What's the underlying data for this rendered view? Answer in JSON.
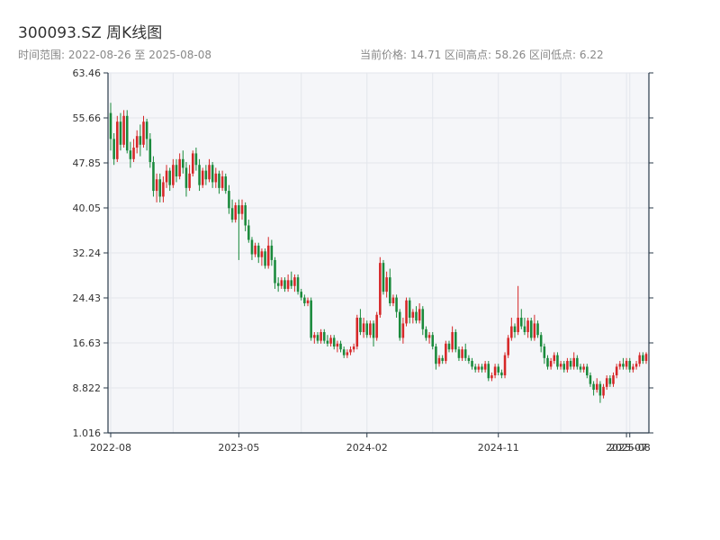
{
  "header": {
    "title": "300093.SZ 周K线图",
    "subtitle": "时间范围: 2022-08-26 至 2025-08-08",
    "stats": "当前价格: 14.71   区间高点: 58.26   区间低点: 6.22"
  },
  "colors": {
    "up": "#d62728",
    "down": "#1a8a3c",
    "plot_bg": "#f5f6f9",
    "grid": "#e3e6ec",
    "axis": "#2a3a4a"
  },
  "chart_data": {
    "type": "candlestick",
    "title": "300093.SZ 周K线图",
    "date_range": [
      "2022-08-26",
      "2025-08-08"
    ],
    "current_price": 14.71,
    "period_high": 58.26,
    "period_low": 6.22,
    "ylim": [
      1.016,
      63.46
    ],
    "yticks": [
      "1.016",
      "8.822",
      "16.63",
      "24.43",
      "32.24",
      "40.05",
      "47.85",
      "55.66",
      "63.46"
    ],
    "xticks": [
      {
        "label": "2022-08",
        "index": 0
      },
      {
        "label": "2023-05",
        "index": 39
      },
      {
        "label": "2024-02",
        "index": 78
      },
      {
        "label": "2024-11",
        "index": 118
      },
      {
        "label": "2025-07",
        "index": 157
      },
      {
        "label": "2025-08",
        "index": 158
      }
    ],
    "candles": [
      [
        56.5,
        52.0,
        58.26,
        50.0
      ],
      [
        52.0,
        48.5,
        53.0,
        47.5
      ],
      [
        48.5,
        55.0,
        56.0,
        48.0
      ],
      [
        55.0,
        51.0,
        56.5,
        50.0
      ],
      [
        51.0,
        56.0,
        57.0,
        50.5
      ],
      [
        56.0,
        50.0,
        57.0,
        49.5
      ],
      [
        50.0,
        48.5,
        51.5,
        47.0
      ],
      [
        48.5,
        50.5,
        52.0,
        48.0
      ],
      [
        50.5,
        52.5,
        53.5,
        49.5
      ],
      [
        52.5,
        51.0,
        54.5,
        49.0
      ],
      [
        51.0,
        55.0,
        56.0,
        50.5
      ],
      [
        55.0,
        52.0,
        55.5,
        50.0
      ],
      [
        52.0,
        48.0,
        53.0,
        47.0
      ],
      [
        48.0,
        43.0,
        49.0,
        42.0
      ],
      [
        43.0,
        45.0,
        46.0,
        41.0
      ],
      [
        45.0,
        42.0,
        46.0,
        41.0
      ],
      [
        42.0,
        44.5,
        45.5,
        41.0
      ],
      [
        44.5,
        46.5,
        47.5,
        43.5
      ],
      [
        46.5,
        44.0,
        47.0,
        43.0
      ],
      [
        44.0,
        47.5,
        48.5,
        43.5
      ],
      [
        47.5,
        45.5,
        48.5,
        44.5
      ],
      [
        45.5,
        48.5,
        49.5,
        45.0
      ],
      [
        48.5,
        47.0,
        50.0,
        46.0
      ],
      [
        47.0,
        43.5,
        48.0,
        42.0
      ],
      [
        43.5,
        46.0,
        47.5,
        43.0
      ],
      [
        46.0,
        49.5,
        50.0,
        45.5
      ],
      [
        49.5,
        47.5,
        50.5,
        46.5
      ],
      [
        47.5,
        44.0,
        48.5,
        43.0
      ],
      [
        44.0,
        46.5,
        47.0,
        43.5
      ],
      [
        46.5,
        45.0,
        47.5,
        44.0
      ],
      [
        45.0,
        47.5,
        48.5,
        44.5
      ],
      [
        47.5,
        44.5,
        48.0,
        43.5
      ],
      [
        44.5,
        46.0,
        47.0,
        43.5
      ],
      [
        46.0,
        43.5,
        46.5,
        42.5
      ],
      [
        43.5,
        45.5,
        46.5,
        43.0
      ],
      [
        45.5,
        43.0,
        46.0,
        42.5
      ],
      [
        43.0,
        40.0,
        44.0,
        39.0
      ],
      [
        40.0,
        38.0,
        41.5,
        37.5
      ],
      [
        38.0,
        40.5,
        41.0,
        37.5
      ],
      [
        40.5,
        39.0,
        41.5,
        31.0
      ],
      [
        39.0,
        40.5,
        41.5,
        38.0
      ],
      [
        40.5,
        37.0,
        41.0,
        36.0
      ],
      [
        37.0,
        34.5,
        38.0,
        34.0
      ],
      [
        34.5,
        32.0,
        35.0,
        31.0
      ],
      [
        32.0,
        33.5,
        34.0,
        31.5
      ],
      [
        33.5,
        31.5,
        34.0,
        30.5
      ],
      [
        31.5,
        32.5,
        33.0,
        30.0
      ],
      [
        32.5,
        30.0,
        33.0,
        29.5
      ],
      [
        30.0,
        33.5,
        35.0,
        29.5
      ],
      [
        33.5,
        31.0,
        34.5,
        30.0
      ],
      [
        31.0,
        27.0,
        31.5,
        26.0
      ],
      [
        27.0,
        26.5,
        28.0,
        25.5
      ],
      [
        26.5,
        27.5,
        28.0,
        26.0
      ],
      [
        27.5,
        26.0,
        28.0,
        25.5
      ],
      [
        26.0,
        27.5,
        28.5,
        25.5
      ],
      [
        27.5,
        26.5,
        29.0,
        26.0
      ],
      [
        26.5,
        28.0,
        28.5,
        25.5
      ],
      [
        28.0,
        25.5,
        28.5,
        25.0
      ],
      [
        25.5,
        24.5,
        26.0,
        24.0
      ],
      [
        24.5,
        23.5,
        25.0,
        23.0
      ],
      [
        23.5,
        24.0,
        24.5,
        23.0
      ],
      [
        24.0,
        17.5,
        24.5,
        17.0
      ],
      [
        17.5,
        18.0,
        18.5,
        16.5
      ],
      [
        18.0,
        17.0,
        18.5,
        16.5
      ],
      [
        17.0,
        18.5,
        19.0,
        16.5
      ],
      [
        18.5,
        17.0,
        19.0,
        16.5
      ],
      [
        17.0,
        16.5,
        18.0,
        16.0
      ],
      [
        16.5,
        17.5,
        18.0,
        16.0
      ],
      [
        17.5,
        16.0,
        18.0,
        15.5
      ],
      [
        16.0,
        16.5,
        17.0,
        15.0
      ],
      [
        16.5,
        15.5,
        17.0,
        15.0
      ],
      [
        15.5,
        14.5,
        16.0,
        14.0
      ],
      [
        14.5,
        15.0,
        15.5,
        14.0
      ],
      [
        15.0,
        15.5,
        16.0,
        14.5
      ],
      [
        15.5,
        16.0,
        16.5,
        15.0
      ],
      [
        16.0,
        21.0,
        21.5,
        15.5
      ],
      [
        21.0,
        18.5,
        22.5,
        18.0
      ],
      [
        18.5,
        20.0,
        21.0,
        17.5
      ],
      [
        20.0,
        18.0,
        20.5,
        17.5
      ],
      [
        18.0,
        20.0,
        20.5,
        17.5
      ],
      [
        20.0,
        17.5,
        20.5,
        16.0
      ],
      [
        17.5,
        21.5,
        22.0,
        17.0
      ],
      [
        21.5,
        30.5,
        31.5,
        21.0
      ],
      [
        30.5,
        25.5,
        31.0,
        25.0
      ],
      [
        25.5,
        28.0,
        29.0,
        24.5
      ],
      [
        28.0,
        23.5,
        29.5,
        23.0
      ],
      [
        23.5,
        24.5,
        25.0,
        23.0
      ],
      [
        24.5,
        22.0,
        25.0,
        21.0
      ],
      [
        22.0,
        17.5,
        22.5,
        17.0
      ],
      [
        17.5,
        20.0,
        21.0,
        16.5
      ],
      [
        20.0,
        24.0,
        24.5,
        19.5
      ],
      [
        24.0,
        21.0,
        24.5,
        20.0
      ],
      [
        21.0,
        22.0,
        22.5,
        20.0
      ],
      [
        22.0,
        20.5,
        23.0,
        20.0
      ],
      [
        20.5,
        22.5,
        23.5,
        20.0
      ],
      [
        22.5,
        19.0,
        23.0,
        18.0
      ],
      [
        19.0,
        17.5,
        19.5,
        17.0
      ],
      [
        17.5,
        18.0,
        18.5,
        16.5
      ],
      [
        18.0,
        16.0,
        18.5,
        15.5
      ],
      [
        16.0,
        13.0,
        16.5,
        12.0
      ],
      [
        13.0,
        14.0,
        14.5,
        12.5
      ],
      [
        14.0,
        13.5,
        14.5,
        13.0
      ],
      [
        13.5,
        16.5,
        17.0,
        13.0
      ],
      [
        16.5,
        15.5,
        17.0,
        15.0
      ],
      [
        15.5,
        18.5,
        19.5,
        15.0
      ],
      [
        18.5,
        15.5,
        19.0,
        15.0
      ],
      [
        15.5,
        14.0,
        16.0,
        13.5
      ],
      [
        14.0,
        15.5,
        16.0,
        13.5
      ],
      [
        15.5,
        14.0,
        16.5,
        13.5
      ],
      [
        14.0,
        13.5,
        14.5,
        13.0
      ],
      [
        13.5,
        12.5,
        14.0,
        12.0
      ],
      [
        12.5,
        12.0,
        13.0,
        11.5
      ],
      [
        12.0,
        12.5,
        13.0,
        11.5
      ],
      [
        12.5,
        12.0,
        13.0,
        11.5
      ],
      [
        12.0,
        13.0,
        13.5,
        11.5
      ],
      [
        13.0,
        10.5,
        13.5,
        10.0
      ],
      [
        10.5,
        11.0,
        11.5,
        10.0
      ],
      [
        11.0,
        12.5,
        13.0,
        10.5
      ],
      [
        12.5,
        11.5,
        13.0,
        11.0
      ],
      [
        11.5,
        11.0,
        12.0,
        10.5
      ],
      [
        11.0,
        14.5,
        15.0,
        10.5
      ],
      [
        14.5,
        17.5,
        18.0,
        14.0
      ],
      [
        17.5,
        19.5,
        21.0,
        17.0
      ],
      [
        19.5,
        18.5,
        20.0,
        17.5
      ],
      [
        18.5,
        21.0,
        26.5,
        18.0
      ],
      [
        21.0,
        19.5,
        22.5,
        19.0
      ],
      [
        19.5,
        18.5,
        21.0,
        18.0
      ],
      [
        18.5,
        20.5,
        21.0,
        17.5
      ],
      [
        20.5,
        17.5,
        21.0,
        17.0
      ],
      [
        17.5,
        20.0,
        21.5,
        17.0
      ],
      [
        20.0,
        18.0,
        20.5,
        17.5
      ],
      [
        18.0,
        16.0,
        18.5,
        15.0
      ],
      [
        16.0,
        14.0,
        16.5,
        13.0
      ],
      [
        14.0,
        12.5,
        14.5,
        12.0
      ],
      [
        12.5,
        13.5,
        14.0,
        12.0
      ],
      [
        13.5,
        14.5,
        15.0,
        13.0
      ],
      [
        14.5,
        12.5,
        15.0,
        12.0
      ],
      [
        12.5,
        13.0,
        13.5,
        12.0
      ],
      [
        13.0,
        12.0,
        13.5,
        11.5
      ],
      [
        12.0,
        13.5,
        14.0,
        11.5
      ],
      [
        13.5,
        12.5,
        14.0,
        12.0
      ],
      [
        12.5,
        14.0,
        15.0,
        12.0
      ],
      [
        14.0,
        12.5,
        14.5,
        12.0
      ],
      [
        12.5,
        12.0,
        13.0,
        11.5
      ],
      [
        12.0,
        12.5,
        13.0,
        11.5
      ],
      [
        12.5,
        11.0,
        13.0,
        10.5
      ],
      [
        11.0,
        9.5,
        11.5,
        9.0
      ],
      [
        9.5,
        8.5,
        10.0,
        7.5
      ],
      [
        8.5,
        9.5,
        10.5,
        8.0
      ],
      [
        9.5,
        7.5,
        10.0,
        6.22
      ],
      [
        7.5,
        9.0,
        9.5,
        7.0
      ],
      [
        9.0,
        10.5,
        11.0,
        8.5
      ],
      [
        10.5,
        9.5,
        11.0,
        9.0
      ],
      [
        9.5,
        11.0,
        11.5,
        9.0
      ],
      [
        11.0,
        12.5,
        13.0,
        10.5
      ],
      [
        12.5,
        13.0,
        13.5,
        12.0
      ],
      [
        13.0,
        12.5,
        14.0,
        12.0
      ],
      [
        12.5,
        13.5,
        14.0,
        12.0
      ],
      [
        13.5,
        12.0,
        14.0,
        11.5
      ],
      [
        12.0,
        12.5,
        13.0,
        11.5
      ],
      [
        12.5,
        13.0,
        13.5,
        12.0
      ],
      [
        13.0,
        14.5,
        15.0,
        12.5
      ],
      [
        14.5,
        13.5,
        15.0,
        13.0
      ],
      [
        13.5,
        14.71,
        15.0,
        13.0
      ]
    ]
  }
}
